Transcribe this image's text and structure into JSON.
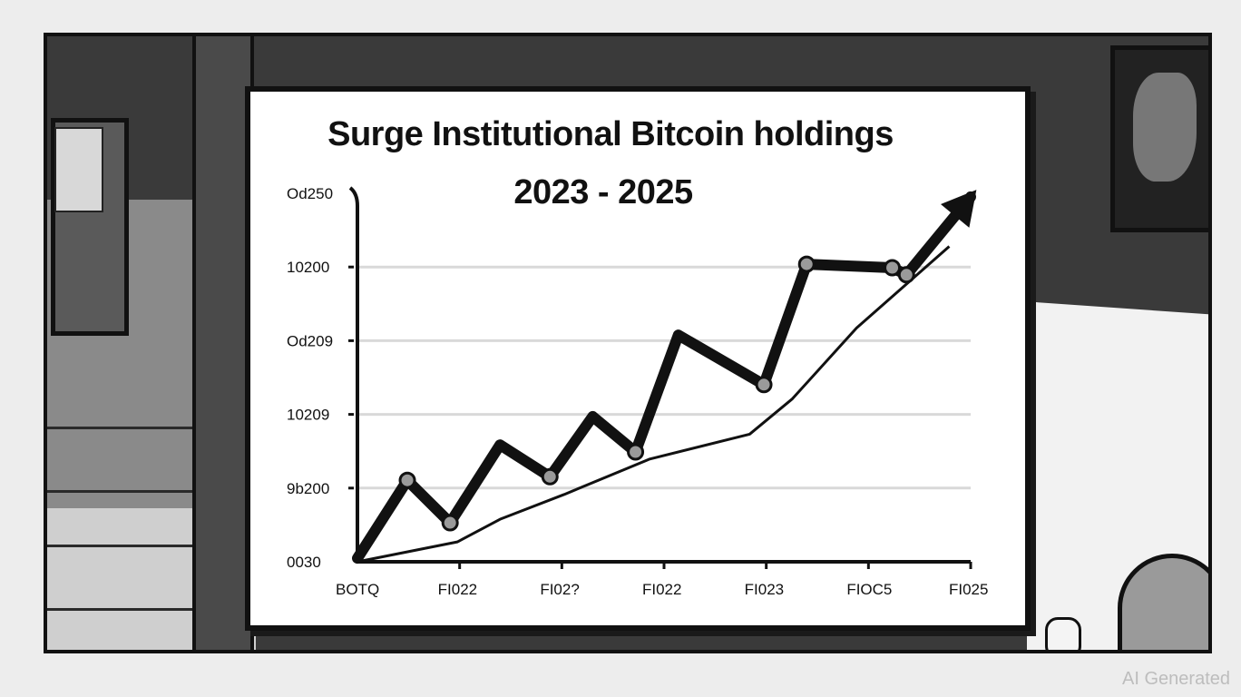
{
  "chart_data": {
    "type": "line",
    "title": "Surge Institutional Bitcoin holdings",
    "subtitle": "2023 - 2025",
    "y_tick_labels": [
      "Od250",
      "10200",
      "Od209",
      "10209",
      "9b200",
      "0030"
    ],
    "x_tick_labels": [
      "BOTQ",
      "FI022",
      "FI02?",
      "FI022",
      "FI023",
      "FIOC5",
      "FI025"
    ],
    "series": [
      {
        "name": "",
        "style": "thick-with-markers-and-arrow",
        "x": [
          0.0,
          0.35,
          0.65,
          1.0,
          1.35,
          1.65,
          1.95,
          2.25,
          2.85,
          3.15,
          3.75,
          3.85,
          4.3
        ],
        "y": [
          0.05,
          1.15,
          0.55,
          1.65,
          1.2,
          2.05,
          1.55,
          3.2,
          2.5,
          4.2,
          4.15,
          4.05,
          5.15
        ]
      },
      {
        "name": "",
        "style": "thin",
        "x": [
          0.0,
          0.7,
          1.0,
          1.45,
          2.05,
          2.75,
          3.05,
          3.5,
          4.15
        ],
        "y": [
          0.0,
          0.28,
          0.6,
          0.95,
          1.45,
          1.8,
          2.3,
          3.3,
          4.45
        ]
      }
    ],
    "ylim": [
      0,
      5.2
    ],
    "xlim": [
      0,
      4.3
    ],
    "grid": true
  },
  "colors": {
    "line": "#111111",
    "grid": "#d9d9d9",
    "board": "#ffffff"
  },
  "watermark": "AI Generated"
}
